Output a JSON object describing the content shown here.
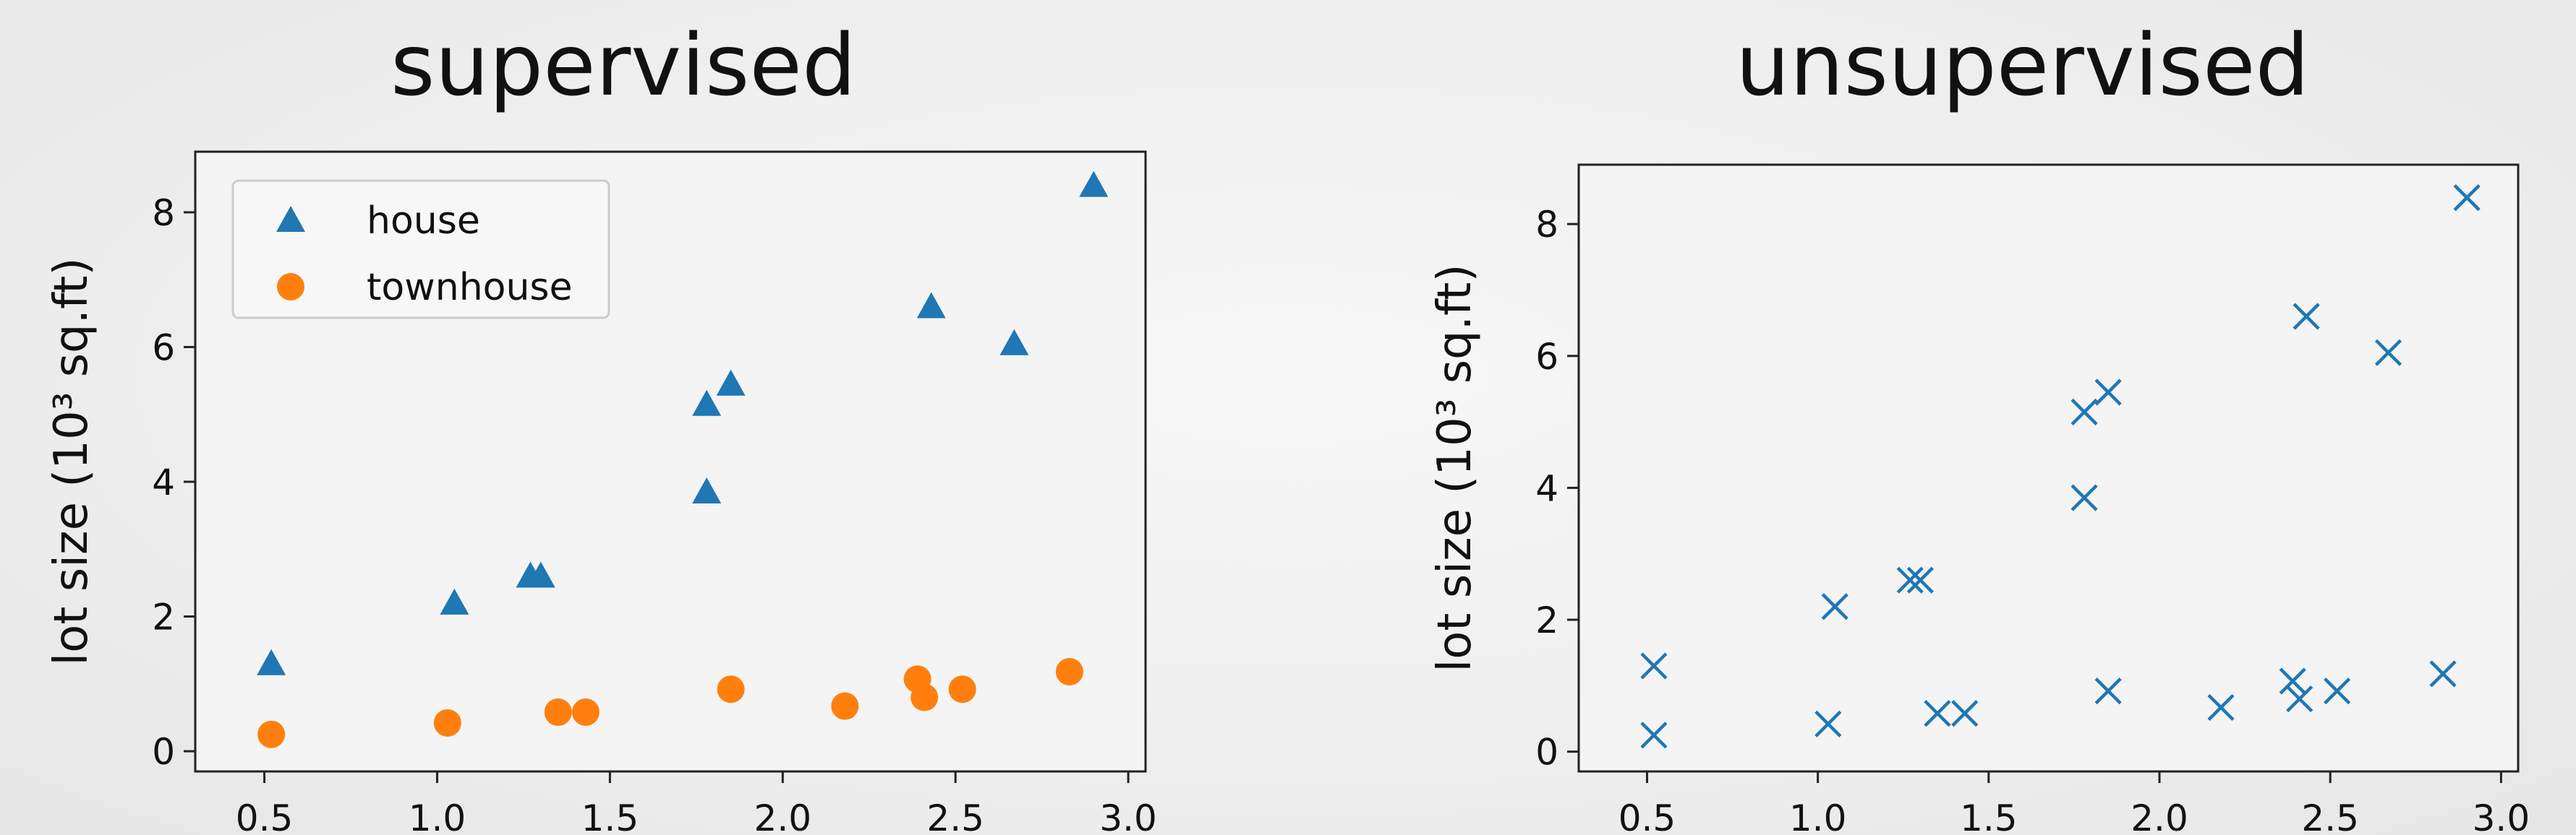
{
  "titles": {
    "left": "supervised",
    "right": "unsupervised"
  },
  "colors": {
    "house": "#1f77b4",
    "townhouse": "#ff7f0e",
    "unlabeled": "#1f77b4",
    "axes": "#222222"
  },
  "chart_data": [
    {
      "type": "scatter",
      "title": "supervised",
      "xlabel": "",
      "ylabel": "lot size (10³ sq.ft)",
      "xlim": [
        0.3,
        3.05
      ],
      "ylim": [
        -0.3,
        8.9
      ],
      "xticks": [
        0.5,
        1.0,
        1.5,
        2.0,
        2.5,
        3.0
      ],
      "xtick_labels": [
        "0.5",
        "1.0",
        "1.5",
        "2.0",
        "2.5",
        "3.0"
      ],
      "yticks": [
        0,
        2,
        4,
        6,
        8
      ],
      "ytick_labels": [
        "0",
        "2",
        "4",
        "6",
        "8"
      ],
      "grid": false,
      "legend_position": "top-left",
      "series": [
        {
          "name": "house",
          "marker": "triangle",
          "color": "#1f77b4",
          "points": [
            {
              "x": 0.52,
              "y": 1.3
            },
            {
              "x": 1.05,
              "y": 2.2
            },
            {
              "x": 1.27,
              "y": 2.6
            },
            {
              "x": 1.3,
              "y": 2.6
            },
            {
              "x": 1.78,
              "y": 3.85
            },
            {
              "x": 1.78,
              "y": 5.15
            },
            {
              "x": 1.85,
              "y": 5.45
            },
            {
              "x": 2.43,
              "y": 6.6
            },
            {
              "x": 2.67,
              "y": 6.05
            },
            {
              "x": 2.9,
              "y": 8.4
            }
          ]
        },
        {
          "name": "townhouse",
          "marker": "circle",
          "color": "#ff7f0e",
          "points": [
            {
              "x": 0.52,
              "y": 0.25
            },
            {
              "x": 1.03,
              "y": 0.42
            },
            {
              "x": 1.35,
              "y": 0.58
            },
            {
              "x": 1.43,
              "y": 0.58
            },
            {
              "x": 1.85,
              "y": 0.92
            },
            {
              "x": 2.18,
              "y": 0.67
            },
            {
              "x": 2.39,
              "y": 1.07
            },
            {
              "x": 2.41,
              "y": 0.8
            },
            {
              "x": 2.52,
              "y": 0.92
            },
            {
              "x": 2.83,
              "y": 1.18
            }
          ]
        }
      ]
    },
    {
      "type": "scatter",
      "title": "unsupervised",
      "xlabel": "",
      "ylabel": "lot size (10³ sq.ft)",
      "xlim": [
        0.3,
        3.05
      ],
      "ylim": [
        -0.3,
        8.9
      ],
      "xticks": [
        0.5,
        1.0,
        1.5,
        2.0,
        2.5,
        3.0
      ],
      "xtick_labels": [
        "0.5",
        "1.0",
        "1.5",
        "2.0",
        "2.5",
        "3.0"
      ],
      "yticks": [
        0,
        2,
        4,
        6,
        8
      ],
      "ytick_labels": [
        "0",
        "2",
        "4",
        "6",
        "8"
      ],
      "grid": false,
      "series": [
        {
          "marker": "x",
          "color": "#1f77b4",
          "points": [
            {
              "x": 0.52,
              "y": 1.3
            },
            {
              "x": 1.05,
              "y": 2.2
            },
            {
              "x": 1.27,
              "y": 2.6
            },
            {
              "x": 1.3,
              "y": 2.6
            },
            {
              "x": 1.78,
              "y": 3.85
            },
            {
              "x": 1.78,
              "y": 5.15
            },
            {
              "x": 1.85,
              "y": 5.45
            },
            {
              "x": 2.43,
              "y": 6.6
            },
            {
              "x": 2.67,
              "y": 6.05
            },
            {
              "x": 2.9,
              "y": 8.4
            },
            {
              "x": 0.52,
              "y": 0.25
            },
            {
              "x": 1.03,
              "y": 0.42
            },
            {
              "x": 1.35,
              "y": 0.58
            },
            {
              "x": 1.43,
              "y": 0.58
            },
            {
              "x": 1.85,
              "y": 0.92
            },
            {
              "x": 2.18,
              "y": 0.67
            },
            {
              "x": 2.39,
              "y": 1.07
            },
            {
              "x": 2.41,
              "y": 0.8
            },
            {
              "x": 2.52,
              "y": 0.92
            },
            {
              "x": 2.83,
              "y": 1.18
            }
          ]
        }
      ]
    }
  ]
}
